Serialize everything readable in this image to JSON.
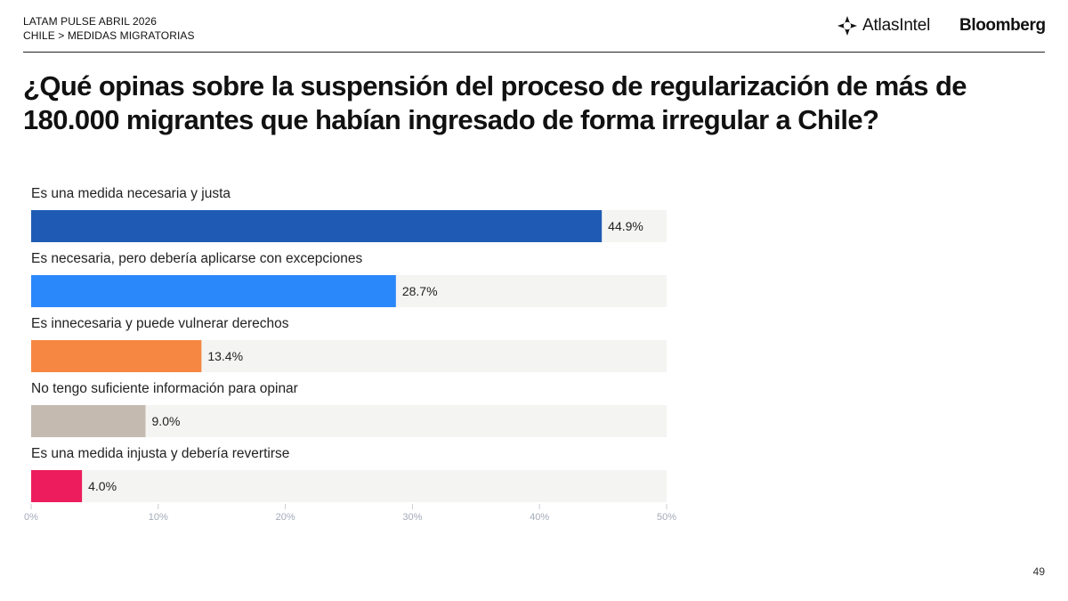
{
  "header": {
    "line1": "LATAM PULSE ABRIL 2026",
    "line2": "CHILE > MEDIDAS MIGRATORIAS",
    "atlas_logo_text": "AtlasIntel",
    "bloomberg_logo_text": "Bloomberg"
  },
  "page_number": "49",
  "chart_data": {
    "type": "bar",
    "orientation": "horizontal",
    "title": "¿Qué opinas sobre la suspensión del proceso de regularización de más de 180.000 migrantes que habían ingresado de forma irregular a Chile?",
    "categories": [
      "Es una medida necesaria y justa",
      "Es necesaria, pero debería aplicarse con excepciones",
      "Es innecesaria y puede vulnerar derechos",
      "No tengo suficiente información para opinar",
      "Es una medida injusta y debería revertirse"
    ],
    "values": [
      44.9,
      28.7,
      13.4,
      9.0,
      4.0
    ],
    "value_labels": [
      "44.9%",
      "28.7%",
      "13.4%",
      "9.0%",
      "4.0%"
    ],
    "colors": [
      "#1f5bb5",
      "#2b88fa",
      "#f58742",
      "#c4bab0",
      "#ed1c5c"
    ],
    "track_color": "#f4f4f2",
    "xlim": [
      0,
      50
    ],
    "xticks": [
      0,
      10,
      20,
      30,
      40,
      50
    ],
    "xtick_labels": [
      "0%",
      "10%",
      "20%",
      "30%",
      "40%",
      "50%"
    ],
    "xlabel": "",
    "ylabel": "",
    "grid": false,
    "legend": "none"
  }
}
